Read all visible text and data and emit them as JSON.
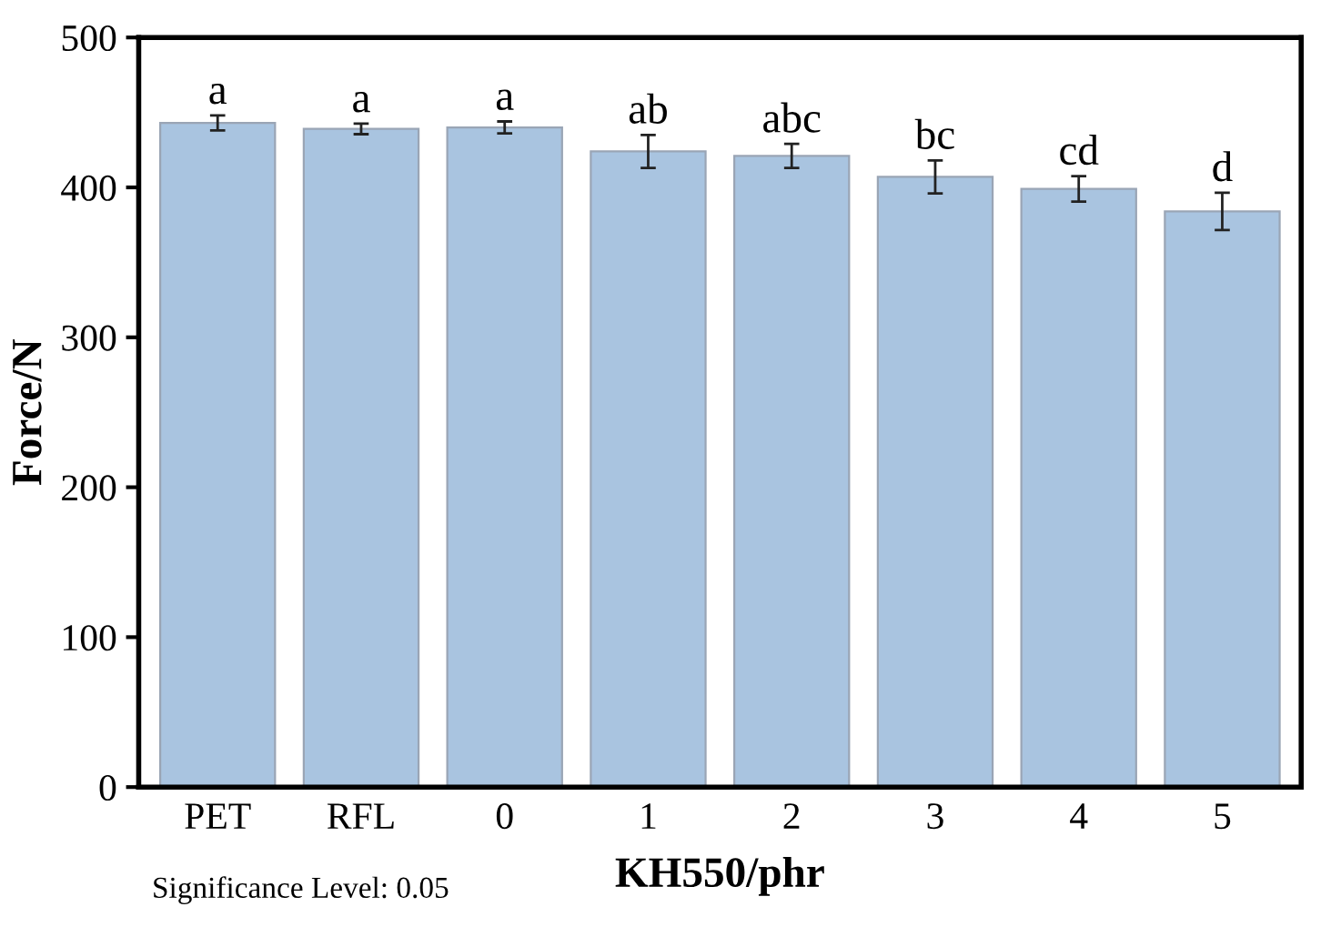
{
  "chart_data": {
    "type": "bar",
    "xlabel": "KH550/phr",
    "ylabel": "Force/N",
    "categories": [
      "PET",
      "RFL",
      "0",
      "1",
      "2",
      "3",
      "4",
      "5"
    ],
    "values": [
      443,
      439,
      440,
      424,
      421,
      407,
      399,
      384
    ],
    "errors": [
      5,
      3.5,
      4,
      11,
      8,
      11,
      8.5,
      12.5
    ],
    "color": "#a9c4e0",
    "ylim": [
      0,
      500
    ],
    "yticks": [
      0,
      100,
      200,
      300,
      400,
      500
    ],
    "grid": false,
    "legend": false,
    "annotations": [
      {
        "text": "a",
        "x": "PET",
        "y": 448
      },
      {
        "text": "a",
        "x": "RFL",
        "y": 442.5
      },
      {
        "text": "a",
        "x": "0",
        "y": 444
      },
      {
        "text": "ab",
        "x": "1",
        "y": 435
      },
      {
        "text": "abc",
        "x": "2",
        "y": 429
      },
      {
        "text": "bc",
        "x": "3",
        "y": 418
      },
      {
        "text": "cd",
        "x": "4",
        "y": 407.5
      },
      {
        "text": "d",
        "x": "5",
        "y": 396.5
      },
      "Significance Level: 0.05"
    ]
  }
}
